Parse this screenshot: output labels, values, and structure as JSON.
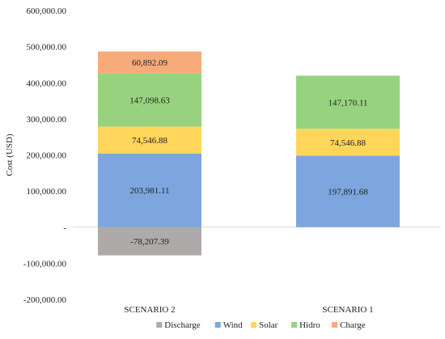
{
  "chart_data": {
    "type": "bar",
    "stacked": true,
    "ylabel": "Cost (USD)",
    "ylim": [
      -200000,
      600000
    ],
    "yticks": [
      {
        "value": 600000,
        "label": "600,000.00"
      },
      {
        "value": 500000,
        "label": "500,000.00"
      },
      {
        "value": 400000,
        "label": "400,000.00"
      },
      {
        "value": 300000,
        "label": "300,000.00"
      },
      {
        "value": 200000,
        "label": "200,000.00"
      },
      {
        "value": 100000,
        "label": "100,000.00"
      },
      {
        "value": 0,
        "label": "-"
      },
      {
        "value": -100000,
        "label": "-100,000.00"
      },
      {
        "value": -200000,
        "label": "-200,000.00"
      }
    ],
    "categories": [
      "SCENARIO 2",
      "SCENARIO 1"
    ],
    "series": [
      {
        "name": "Discharge",
        "color": "#aeaaaa",
        "values": [
          -78207.39,
          null
        ],
        "labels": [
          "-78,207.39",
          ""
        ]
      },
      {
        "name": "Wind",
        "color": "#7ca6dd",
        "values": [
          203981.11,
          197891.68
        ],
        "labels": [
          "203,981.11",
          "197,891.68"
        ]
      },
      {
        "name": "Solar",
        "color": "#ffd65a",
        "values": [
          74546.88,
          74546.88
        ],
        "labels": [
          "74,546.88",
          "74,546.88"
        ]
      },
      {
        "name": "Hidro",
        "color": "#97d37f",
        "values": [
          147098.63,
          147170.11
        ],
        "labels": [
          "147,098.63",
          "147,170.11"
        ]
      },
      {
        "name": "Charge",
        "color": "#f8aa79",
        "values": [
          60892.09,
          null
        ],
        "labels": [
          "60,892.09",
          ""
        ]
      }
    ],
    "legend_position": "bottom",
    "grid": false
  }
}
